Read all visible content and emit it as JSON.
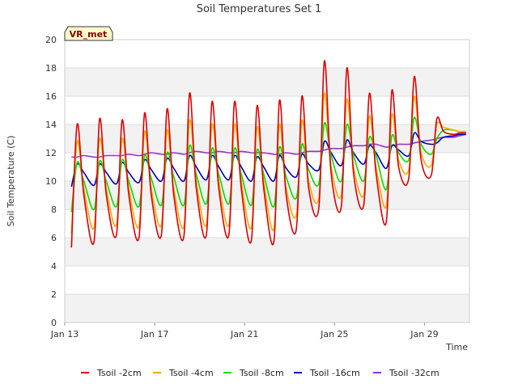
{
  "chart_data": {
    "type": "line",
    "title": "Soil Temperatures Set 1",
    "xlabel": "Time",
    "ylabel": "Soil Temperature (C)",
    "ylim": [
      0,
      20
    ],
    "yticks": [
      0,
      2,
      4,
      6,
      8,
      10,
      12,
      14,
      16,
      18,
      20
    ],
    "xlim": [
      "2024-01-13",
      "2024-01-31"
    ],
    "xticks": [
      "Jan 13",
      "Jan 17",
      "Jan 21",
      "Jan 25",
      "Jan 29"
    ],
    "grid": true,
    "legend_position": "bottom",
    "station_tag": "VR_met",
    "x_unit": "days since Jan 13",
    "x": [
      0.3,
      0.55,
      0.85,
      1.3,
      1.55,
      1.85,
      2.3,
      2.55,
      2.85,
      3.3,
      3.55,
      3.85,
      4.3,
      4.55,
      4.85,
      5.3,
      5.55,
      5.85,
      6.3,
      6.55,
      6.85,
      7.3,
      7.55,
      7.85,
      8.3,
      8.55,
      8.85,
      9.3,
      9.55,
      9.85,
      10.3,
      10.55,
      10.85,
      11.3,
      11.55,
      11.85,
      12.3,
      12.55,
      12.85,
      13.3,
      13.55,
      13.85,
      14.3,
      14.55,
      14.85,
      15.3,
      15.55,
      15.85,
      16.3,
      16.55,
      16.85,
      17.3,
      17.55,
      17.85
    ],
    "series": [
      {
        "name": "Tsoil -2cm",
        "color": "#dd0000",
        "values": [
          5.3,
          14.0,
          9.0,
          5.7,
          14.4,
          9.0,
          6.2,
          14.3,
          9.0,
          6.0,
          14.8,
          9.0,
          6.2,
          15.1,
          9.0,
          6.1,
          16.2,
          9.5,
          6.2,
          15.6,
          9.5,
          6.2,
          15.6,
          9.5,
          5.8,
          15.3,
          9.5,
          5.7,
          15.7,
          9.0,
          6.6,
          16.0,
          9.5,
          8.1,
          18.5,
          10.5,
          8.2,
          18.0,
          10.5,
          8.3,
          16.2,
          10.5,
          7.1,
          16.4,
          11.0,
          10.2,
          17.4,
          11.5,
          10.4,
          14.4,
          13.5,
          13.3,
          13.4,
          13.4
        ]
      },
      {
        "name": "Tsoil -4cm",
        "color": "#ffa500",
        "values": [
          6.3,
          12.8,
          9.5,
          6.7,
          13.0,
          9.5,
          6.9,
          13.0,
          9.5,
          6.8,
          13.5,
          9.5,
          6.9,
          13.6,
          9.5,
          6.8,
          14.3,
          10.0,
          6.9,
          14.0,
          10.0,
          6.9,
          14.0,
          10.0,
          6.7,
          13.8,
          10.0,
          6.6,
          14.0,
          9.5,
          7.6,
          14.3,
          10.0,
          8.8,
          16.2,
          11.0,
          9.0,
          15.8,
          11.0,
          9.0,
          14.6,
          11.0,
          8.2,
          14.7,
          11.5,
          10.8,
          16.0,
          12.0,
          11.1,
          14.0,
          13.8,
          13.6,
          13.5,
          13.5
        ]
      },
      {
        "name": "Tsoil -8cm",
        "color": "#00dd00",
        "values": [
          7.8,
          11.3,
          10.0,
          8.0,
          11.4,
          10.0,
          8.2,
          11.5,
          10.0,
          8.2,
          11.8,
          10.2,
          8.3,
          12.0,
          10.3,
          8.3,
          12.5,
          10.5,
          8.4,
          12.3,
          10.5,
          8.4,
          12.3,
          10.5,
          8.3,
          12.2,
          10.5,
          8.2,
          12.4,
          10.3,
          8.8,
          12.6,
          10.8,
          9.8,
          14.1,
          11.8,
          10.0,
          14.0,
          11.8,
          10.0,
          13.1,
          11.8,
          9.4,
          13.2,
          12.0,
          11.5,
          14.5,
          12.6,
          11.9,
          13.0,
          13.6,
          13.6,
          13.5,
          13.5
        ]
      },
      {
        "name": "Tsoil -16cm",
        "color": "#0000bb",
        "values": [
          9.6,
          11.2,
          10.6,
          9.7,
          11.2,
          10.6,
          9.8,
          11.3,
          10.6,
          9.9,
          11.5,
          10.8,
          10.0,
          11.6,
          10.9,
          10.0,
          11.8,
          11.0,
          10.1,
          11.8,
          11.0,
          10.1,
          11.8,
          11.0,
          10.0,
          11.7,
          11.0,
          10.0,
          11.8,
          10.9,
          10.3,
          11.9,
          11.2,
          10.8,
          12.8,
          12.0,
          11.1,
          12.9,
          12.0,
          11.2,
          12.5,
          12.0,
          10.9,
          12.5,
          12.2,
          11.8,
          13.4,
          12.8,
          12.6,
          12.7,
          13.1,
          13.2,
          13.3,
          13.3
        ]
      },
      {
        "name": "Tsoil -32cm",
        "color": "#9932cc",
        "values": [
          11.7,
          11.7,
          11.8,
          11.7,
          11.7,
          11.8,
          11.8,
          11.8,
          11.9,
          11.8,
          11.9,
          12.0,
          11.9,
          11.9,
          12.0,
          11.9,
          12.0,
          12.1,
          12.0,
          12.0,
          12.1,
          12.0,
          12.0,
          12.1,
          12.0,
          12.0,
          12.0,
          11.9,
          11.9,
          12.0,
          11.9,
          12.0,
          12.1,
          12.1,
          12.2,
          12.3,
          12.3,
          12.4,
          12.5,
          12.5,
          12.6,
          12.6,
          12.4,
          12.5,
          12.6,
          12.6,
          12.7,
          12.8,
          12.9,
          13.0,
          13.1,
          13.1,
          13.2,
          13.3
        ]
      }
    ]
  }
}
